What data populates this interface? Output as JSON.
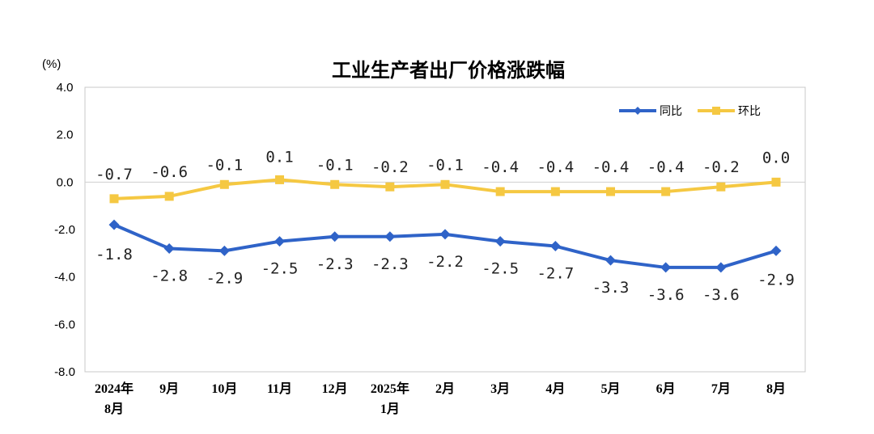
{
  "chart_data": {
    "type": "line",
    "title": "工业生产者出厂价格涨跌幅",
    "y_unit": "(%)",
    "categories": [
      [
        "2024年",
        "8月"
      ],
      [
        "9月"
      ],
      [
        "10月"
      ],
      [
        "11月"
      ],
      [
        "12月"
      ],
      [
        "2025年",
        "1月"
      ],
      [
        "2月"
      ],
      [
        "3月"
      ],
      [
        "4月"
      ],
      [
        "5月"
      ],
      [
        "6月"
      ],
      [
        "7月"
      ],
      [
        "8月"
      ]
    ],
    "ylim": [
      -8.0,
      4.0
    ],
    "yticks": [
      4.0,
      2.0,
      0.0,
      -2.0,
      -4.0,
      -6.0,
      -8.0
    ],
    "ytick_labels": [
      "4.0",
      "2.0",
      "0.0",
      "-2.0",
      "-4.0",
      "-6.0",
      "-8.0"
    ],
    "legend_position": "top-right",
    "grid": false,
    "series": [
      {
        "name": "同比",
        "color": "#2f63c8",
        "marker": "diamond",
        "values": [
          -1.8,
          -2.8,
          -2.9,
          -2.5,
          -2.3,
          -2.3,
          -2.2,
          -2.5,
          -2.7,
          -3.3,
          -3.6,
          -3.6,
          -2.9
        ],
        "labels": [
          "-1.8",
          "-2.8",
          "-2.9",
          "-2.5",
          "-2.3",
          "-2.3",
          "-2.2",
          "-2.5",
          "-2.7",
          "-3.3",
          "-3.6",
          "-3.6",
          "-2.9"
        ]
      },
      {
        "name": "环比",
        "color": "#f5c842",
        "marker": "square",
        "values": [
          -0.7,
          -0.6,
          -0.1,
          0.1,
          -0.1,
          -0.2,
          -0.1,
          -0.4,
          -0.4,
          -0.4,
          -0.4,
          -0.2,
          0.0
        ],
        "labels": [
          "-0.7",
          "-0.6",
          "-0.1",
          "0.1",
          "-0.1",
          "-0.2",
          "-0.1",
          "-0.4",
          "-0.4",
          "-0.4",
          "-0.4",
          "-0.2",
          "0.0"
        ]
      }
    ]
  }
}
